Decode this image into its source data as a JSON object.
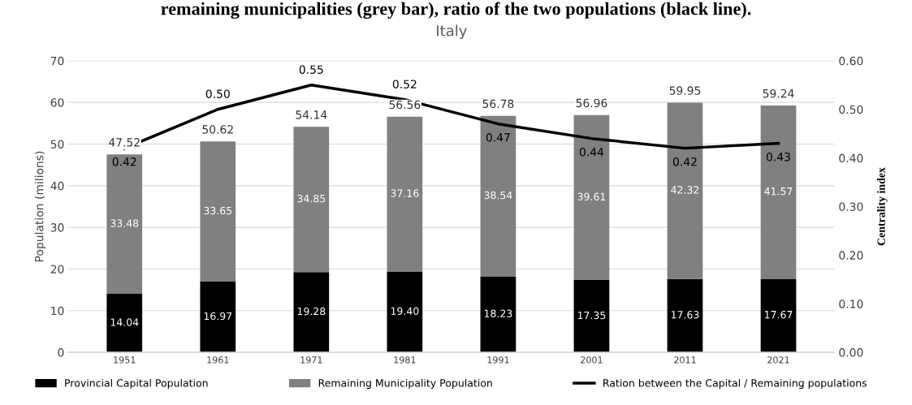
{
  "chart_data": {
    "type": "bar",
    "title": "Italy",
    "annotations": [
      "remaining municipalities (grey bar), ratio of the two populations (black line)."
    ],
    "categories": [
      "1951",
      "1961",
      "1971",
      "1981",
      "1991",
      "2001",
      "2011",
      "2021"
    ],
    "stacked": true,
    "series": [
      {
        "name": "Provincial Capital Population",
        "color": "#000000",
        "values": [
          14.04,
          16.97,
          19.28,
          19.4,
          18.23,
          17.35,
          17.63,
          17.67
        ],
        "value_labels": [
          "14.04",
          "16.97",
          "19.28",
          "19.40",
          "18.23",
          "17.35",
          "17.63",
          "17.67"
        ]
      },
      {
        "name": "Remaining Municipality Population",
        "color": "#808080",
        "values": [
          33.48,
          33.65,
          34.85,
          37.16,
          38.54,
          39.61,
          42.32,
          41.57
        ],
        "value_labels": [
          "33.48",
          "33.65",
          "34.85",
          "37.16",
          "38.54",
          "39.61",
          "42.32",
          "41.57"
        ]
      },
      {
        "name": "Ration between the Capital / Remaining populations",
        "type": "line",
        "axis": "y2",
        "color": "#000000",
        "values": [
          0.42,
          0.5,
          0.55,
          0.52,
          0.47,
          0.44,
          0.42,
          0.43
        ],
        "value_labels": [
          "0.42",
          "0.50",
          "0.55",
          "0.52",
          "0.47",
          "0.44",
          "0.42",
          "0.43"
        ]
      }
    ],
    "totals": [
      "47.52",
      "50.62",
      "54.14",
      "56.56",
      "56.78",
      "56.96",
      "59.95",
      "59.24"
    ],
    "ylabel": "Population (milions)",
    "y2label": "Centrality index",
    "ylim": [
      0,
      70
    ],
    "yticks": [
      0,
      10,
      20,
      30,
      40,
      50,
      60,
      70
    ],
    "y2lim": [
      0,
      0.6
    ],
    "y2ticks": [
      {
        "value": 0,
        "label": "0.00"
      },
      {
        "value": 0.1,
        "label": "0.10"
      },
      {
        "value": 0.2,
        "label": "0.20"
      },
      {
        "value": 0.3,
        "label": "0.30"
      },
      {
        "value": 0.4,
        "label": "0.40"
      },
      {
        "value": 0.5,
        "label": "0.50"
      },
      {
        "value": 0.6,
        "label": "0.60"
      }
    ],
    "grid": "y",
    "legend": "bottom",
    "marker": "none",
    "line_style": "solid"
  }
}
